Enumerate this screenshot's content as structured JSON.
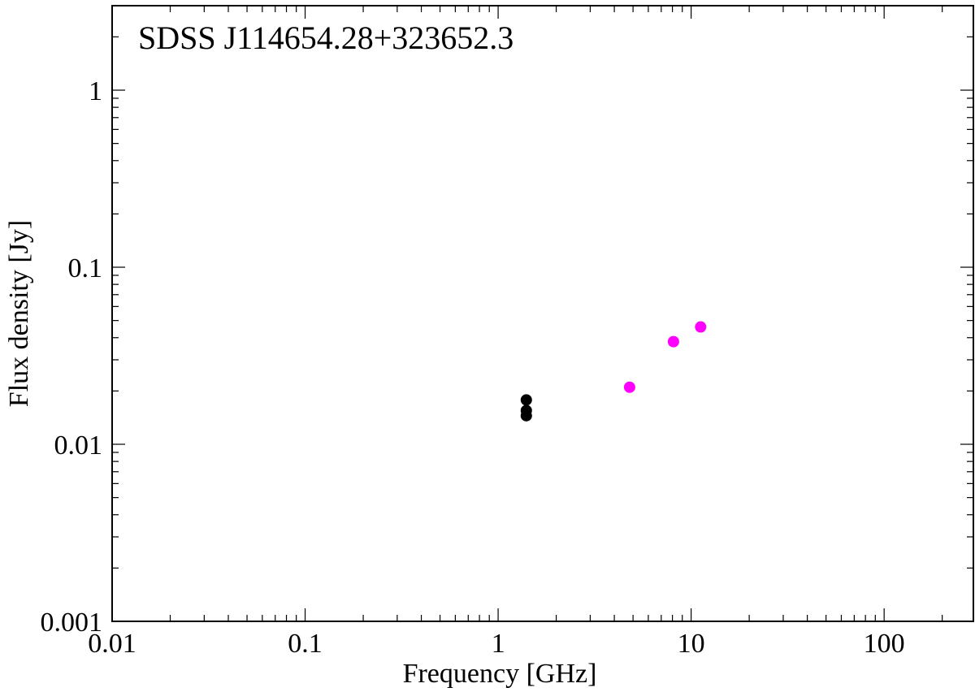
{
  "chart_data": {
    "type": "scatter",
    "title": "SDSS J114654.28+323652.3",
    "xlabel": "Frequency [GHz]",
    "ylabel": "Flux density [Jy]",
    "x_scale": "log",
    "y_scale": "log",
    "xlim": [
      0.01,
      290
    ],
    "ylim": [
      0.001,
      3
    ],
    "x_tick_values": [
      0.01,
      0.1,
      1,
      10,
      100
    ],
    "x_tick_labels": [
      "0.01",
      "0.1",
      "1",
      "10",
      "100"
    ],
    "y_tick_values": [
      0.001,
      0.01,
      0.1,
      1
    ],
    "y_tick_labels": [
      "0.001",
      "0.01",
      "0.1",
      "1"
    ],
    "grid": false,
    "series": [
      {
        "color": "#000000",
        "points": [
          {
            "x": 1.4,
            "y": 0.0178
          },
          {
            "x": 1.4,
            "y": 0.0155
          },
          {
            "x": 1.4,
            "y": 0.0145
          }
        ]
      },
      {
        "color": "#ff00ff",
        "points": [
          {
            "x": 4.8,
            "y": 0.021
          },
          {
            "x": 8.1,
            "y": 0.038
          },
          {
            "x": 11.2,
            "y": 0.046
          }
        ]
      }
    ]
  }
}
